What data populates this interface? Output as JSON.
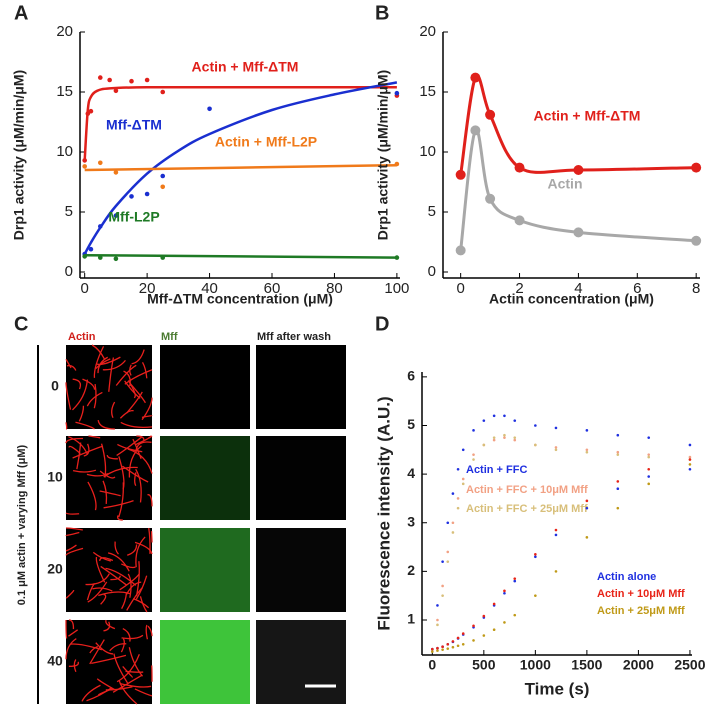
{
  "panel_labels": [
    "A",
    "B",
    "C",
    "D"
  ],
  "chart_data": [
    {
      "type": "scatter",
      "xlabel": "Mff-ΔTM concentration (μM)",
      "ylabel": "Drp1 activity (μM/min/μM)",
      "xlim": [
        -1.5,
        101
      ],
      "xticks": [
        0,
        20,
        40,
        60,
        80,
        100
      ],
      "ylim": [
        -0.5,
        20
      ],
      "yticks": [
        0,
        5,
        10,
        15,
        20
      ],
      "series": [
        {
          "name": "Actin + Mff-ΔTM",
          "color": "#e0201b",
          "x": [
            0,
            1,
            2,
            5,
            8,
            10,
            15,
            20,
            25,
            100
          ],
          "values": [
            9.3,
            13.2,
            13.4,
            16.2,
            16.0,
            15.1,
            15.9,
            16.0,
            15.0,
            14.7
          ],
          "fit": {
            "x": [
              0,
              1,
              2,
              4,
              8,
              20,
              50,
              100
            ],
            "values": [
              9.3,
              13.5,
              14.6,
              15.1,
              15.3,
              15.4,
              15.4,
              15.4
            ]
          }
        },
        {
          "name": "Mff-ΔTM",
          "color": "#1a2fd0",
          "x": [
            0,
            2,
            5,
            10,
            15,
            20,
            25,
            40,
            100
          ],
          "values": [
            1.5,
            1.9,
            3.8,
            4.7,
            6.3,
            6.5,
            8.0,
            13.6,
            14.9
          ],
          "fit": {
            "x": [
              0,
              2,
              5,
              10,
              20,
              30,
              40,
              60,
              80,
              100
            ],
            "values": [
              1.5,
              2.45,
              3.7,
              5.5,
              8.2,
              10.1,
              11.5,
              13.5,
              14.8,
              15.8
            ]
          }
        },
        {
          "name": "Actin + Mff-L2P",
          "color": "#f07a1a",
          "x": [
            0,
            5,
            10,
            25,
            100
          ],
          "values": [
            8.8,
            9.1,
            8.3,
            7.1,
            9.0
          ],
          "fit": {
            "x": [
              0,
              100
            ],
            "values": [
              8.5,
              8.9
            ]
          }
        },
        {
          "name": "Mff-L2P",
          "color": "#1e7a25",
          "x": [
            0,
            5,
            10,
            25,
            100
          ],
          "values": [
            1.3,
            1.2,
            1.1,
            1.2,
            1.2
          ],
          "fit": {
            "x": [
              0,
              100
            ],
            "values": [
              1.4,
              1.2
            ]
          }
        }
      ]
    },
    {
      "type": "line",
      "xlabel": "Actin concentration (μM)",
      "ylabel": "Drp1 activity (μM/min/μM)",
      "xlim": [
        -0.6,
        8.13
      ],
      "xticks": [
        0,
        2,
        4,
        6,
        8
      ],
      "ylim": [
        -0.5,
        20
      ],
      "yticks": [
        0,
        5,
        10,
        15,
        20
      ],
      "series": [
        {
          "name": "Actin + Mff-ΔTM",
          "color": "#e0201b",
          "x": [
            0,
            0.5,
            1,
            2,
            4,
            8
          ],
          "values": [
            8.1,
            16.2,
            13.1,
            8.7,
            8.5,
            8.7
          ]
        },
        {
          "name": "Actin",
          "color": "#a8a8a8",
          "x": [
            0,
            0.5,
            1,
            2,
            4,
            8
          ],
          "values": [
            1.8,
            11.8,
            6.1,
            4.3,
            3.3,
            2.6
          ]
        }
      ]
    },
    {
      "type": "scatter",
      "xlabel": "Time (s)",
      "ylabel": "Fluorescence intensity (A.U.)",
      "xlim": [
        -100,
        2520
      ],
      "xticks": [
        0,
        500,
        1000,
        1500,
        2000,
        2500
      ],
      "ylim": [
        0.28,
        6.1
      ],
      "yticks": [
        1,
        2,
        3,
        4,
        5,
        6
      ],
      "series": [
        {
          "name": "Actin + FFC",
          "color": "#1f30e0",
          "x": [
            0,
            50,
            100,
            150,
            200,
            250,
            300,
            400,
            500,
            600,
            700,
            800,
            1000,
            1200,
            1500,
            1800,
            2100,
            2500
          ],
          "values": [
            0.4,
            1.3,
            2.2,
            3.0,
            3.6,
            4.1,
            4.5,
            4.9,
            5.1,
            5.2,
            5.2,
            5.1,
            5.0,
            4.95,
            4.9,
            4.8,
            4.75,
            4.6
          ]
        },
        {
          "name": "Actin + FFC + 10μM Mff",
          "color": "#f2a184",
          "x": [
            0,
            50,
            100,
            150,
            200,
            250,
            300,
            400,
            500,
            600,
            700,
            800,
            1000,
            1200,
            1500,
            1800,
            2100,
            2500
          ],
          "values": [
            0.4,
            1.0,
            1.7,
            2.4,
            3.0,
            3.5,
            3.9,
            4.4,
            4.6,
            4.7,
            4.75,
            4.7,
            4.6,
            4.55,
            4.5,
            4.45,
            4.4,
            4.35
          ]
        },
        {
          "name": "Actin + FFC + 25μM Mff",
          "color": "#d8bf7a",
          "x": [
            0,
            50,
            100,
            150,
            200,
            250,
            300,
            400,
            500,
            600,
            700,
            800,
            1000,
            1200,
            1500,
            1800,
            2100,
            2500
          ],
          "values": [
            0.4,
            0.9,
            1.5,
            2.2,
            2.8,
            3.3,
            3.8,
            4.3,
            4.6,
            4.75,
            4.8,
            4.75,
            4.6,
            4.5,
            4.45,
            4.4,
            4.35,
            4.3
          ]
        },
        {
          "name": "Actin alone",
          "color": "#1f30e0",
          "x": [
            0,
            50,
            100,
            150,
            200,
            250,
            300,
            400,
            500,
            600,
            700,
            800,
            1000,
            1200,
            1500,
            1800,
            2100,
            2500
          ],
          "values": [
            0.4,
            0.42,
            0.45,
            0.5,
            0.55,
            0.62,
            0.7,
            0.85,
            1.05,
            1.3,
            1.55,
            1.8,
            2.3,
            2.75,
            3.3,
            3.7,
            3.95,
            4.1
          ]
        },
        {
          "name": "Actin + 10μM Mff",
          "color": "#e82418",
          "x": [
            0,
            50,
            100,
            150,
            200,
            250,
            300,
            400,
            500,
            600,
            700,
            800,
            1000,
            1200,
            1500,
            1800,
            2100,
            2500
          ],
          "values": [
            0.4,
            0.42,
            0.45,
            0.5,
            0.56,
            0.63,
            0.72,
            0.88,
            1.08,
            1.33,
            1.6,
            1.85,
            2.35,
            2.85,
            3.45,
            3.85,
            4.1,
            4.3
          ]
        },
        {
          "name": "Actin + 25μM Mff",
          "color": "#c09a18",
          "x": [
            0,
            50,
            100,
            150,
            200,
            250,
            300,
            400,
            500,
            600,
            700,
            800,
            1000,
            1200,
            1500,
            1800,
            2100,
            2500
          ],
          "values": [
            0.35,
            0.37,
            0.39,
            0.41,
            0.44,
            0.47,
            0.5,
            0.58,
            0.68,
            0.8,
            0.95,
            1.1,
            1.5,
            2.0,
            2.7,
            3.3,
            3.8,
            4.2
          ]
        }
      ]
    }
  ],
  "panel_c": {
    "columns": [
      "Actin",
      "Mff",
      "Mff after wash"
    ],
    "rows": [
      "0",
      "10",
      "20",
      "40"
    ],
    "ylabel": "0.1 μM actin + varying Mff (μM)"
  }
}
